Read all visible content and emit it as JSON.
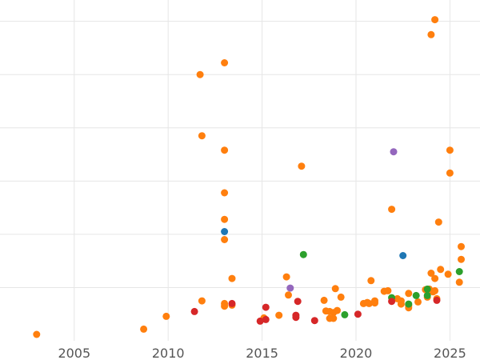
{
  "chart_data": {
    "type": "scatter",
    "title": "",
    "xlabel": "",
    "ylabel": "",
    "xlim": [
      2001.05,
      2026.6
    ],
    "ylim": [
      0,
      6.4
    ],
    "x_ticks": [
      "2005",
      "2010",
      "2015",
      "2020",
      "2025"
    ],
    "grid": true,
    "legend": "none",
    "colors": {
      "orange": "#ff7f0e",
      "blue": "#1f77b4",
      "green": "#2ca02c",
      "red": "#d62728",
      "purple": "#9467bd"
    },
    "series": [
      {
        "color": "orange",
        "points": [
          [
            2003.0,
            0.12
          ],
          [
            2008.7,
            0.22
          ],
          [
            2009.9,
            0.46
          ],
          [
            2011.8,
            0.75
          ],
          [
            2011.7,
            5.0
          ],
          [
            2011.8,
            3.85
          ],
          [
            2013.0,
            5.22
          ],
          [
            2013.0,
            3.58
          ],
          [
            2013.0,
            2.78
          ],
          [
            2013.0,
            2.28
          ],
          [
            2013.0,
            1.9
          ],
          [
            2013.0,
            0.7
          ],
          [
            2013.0,
            0.65
          ],
          [
            2013.4,
            1.17
          ],
          [
            2013.4,
            0.67
          ],
          [
            2015.1,
            0.43
          ],
          [
            2015.9,
            0.48
          ],
          [
            2016.3,
            1.2
          ],
          [
            2016.4,
            0.86
          ],
          [
            2017.1,
            3.28
          ],
          [
            2018.3,
            0.76
          ],
          [
            2018.4,
            0.56
          ],
          [
            2018.6,
            0.42
          ],
          [
            2018.6,
            0.55
          ],
          [
            2018.8,
            0.53
          ],
          [
            2018.8,
            0.42
          ],
          [
            2018.9,
            0.98
          ],
          [
            2019.0,
            0.57
          ],
          [
            2019.2,
            0.82
          ],
          [
            2020.4,
            0.7
          ],
          [
            2020.6,
            0.72
          ],
          [
            2020.7,
            0.7
          ],
          [
            2020.8,
            1.13
          ],
          [
            2021.0,
            0.75
          ],
          [
            2021.0,
            0.71
          ],
          [
            2021.5,
            0.93
          ],
          [
            2021.7,
            0.94
          ],
          [
            2021.9,
            2.47
          ],
          [
            2022.2,
            0.79
          ],
          [
            2022.4,
            0.75
          ],
          [
            2022.4,
            0.69
          ],
          [
            2022.8,
            0.89
          ],
          [
            2022.8,
            0.66
          ],
          [
            2022.8,
            0.62
          ],
          [
            2023.3,
            0.73
          ],
          [
            2023.7,
            0.96
          ],
          [
            2023.8,
            0.82
          ],
          [
            2023.9,
            0.97
          ],
          [
            2024.0,
            1.27
          ],
          [
            2024.0,
            5.75
          ],
          [
            2024.2,
            1.17
          ],
          [
            2024.1,
            0.92
          ],
          [
            2024.2,
            6.03
          ],
          [
            2024.2,
            0.94
          ],
          [
            2024.3,
            0.79
          ],
          [
            2024.4,
            2.23
          ],
          [
            2024.5,
            1.34
          ],
          [
            2024.9,
            1.25
          ],
          [
            2025.0,
            3.58
          ],
          [
            2025.0,
            3.15
          ],
          [
            2025.5,
            1.1
          ],
          [
            2025.6,
            1.53
          ],
          [
            2025.6,
            1.77
          ]
        ]
      },
      {
        "color": "blue",
        "points": [
          [
            2013.0,
            2.05
          ],
          [
            2022.5,
            1.6
          ]
        ]
      },
      {
        "color": "green",
        "points": [
          [
            2017.2,
            1.62
          ],
          [
            2019.4,
            0.49
          ],
          [
            2021.9,
            0.81
          ],
          [
            2022.8,
            0.69
          ],
          [
            2023.2,
            0.85
          ],
          [
            2023.8,
            0.97
          ],
          [
            2023.8,
            0.85
          ],
          [
            2025.5,
            1.3
          ]
        ]
      },
      {
        "color": "red",
        "points": [
          [
            2011.4,
            0.55
          ],
          [
            2013.4,
            0.7
          ],
          [
            2014.9,
            0.37
          ],
          [
            2015.2,
            0.4
          ],
          [
            2015.2,
            0.63
          ],
          [
            2016.8,
            0.48
          ],
          [
            2016.8,
            0.44
          ],
          [
            2016.9,
            0.74
          ],
          [
            2017.8,
            0.38
          ],
          [
            2020.1,
            0.5
          ],
          [
            2021.9,
            0.74
          ],
          [
            2024.3,
            0.76
          ]
        ]
      },
      {
        "color": "purple",
        "points": [
          [
            2016.5,
            0.99
          ],
          [
            2022.0,
            3.55
          ]
        ]
      }
    ]
  }
}
